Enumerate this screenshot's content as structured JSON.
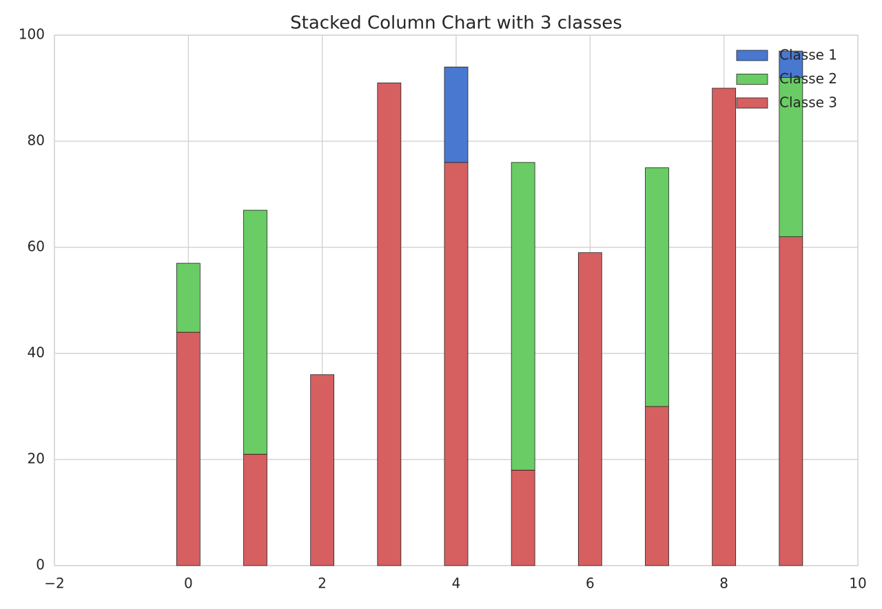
{
  "chart_data": {
    "type": "stacked_bar",
    "title": "Stacked Column Chart with 3 classes",
    "x": [
      0,
      1,
      2,
      3,
      4,
      5,
      6,
      7,
      8,
      9
    ],
    "series": [
      {
        "name": "Classe 1",
        "color": "#4878d0",
        "values": [
          0,
          0,
          0,
          0,
          18,
          0,
          0,
          0,
          0,
          5
        ]
      },
      {
        "name": "Classe 2",
        "color": "#6acc64",
        "values": [
          13,
          46,
          0,
          0,
          0,
          58,
          0,
          45,
          0,
          30
        ]
      },
      {
        "name": "Classe 3",
        "color": "#d65f5f",
        "values": [
          44,
          21,
          36,
          91,
          76,
          18,
          59,
          30,
          90,
          62
        ]
      }
    ],
    "xlim": [
      -2,
      10
    ],
    "xticks": [
      {
        "value": -2,
        "label": "−2"
      },
      0,
      2,
      4,
      6,
      8,
      10
    ],
    "ylim": [
      0,
      100
    ],
    "yticks": [
      0,
      20,
      40,
      60,
      80,
      100
    ],
    "grid": true,
    "legend": "upper right"
  }
}
